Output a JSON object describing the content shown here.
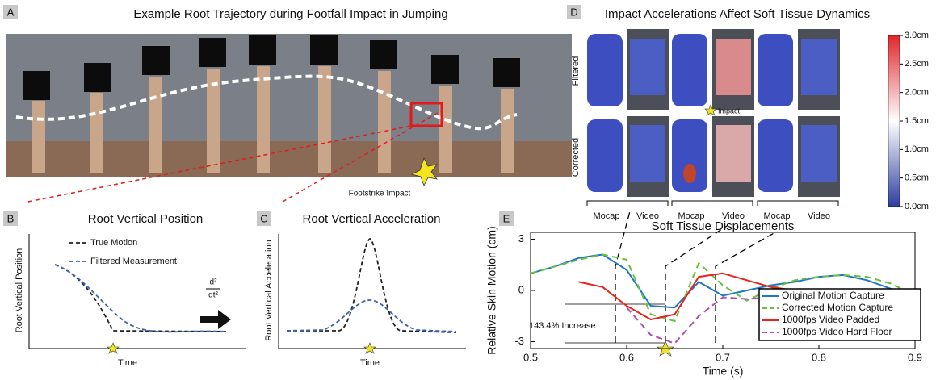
{
  "panels": {
    "a": {
      "letter": "A",
      "title": "Example Root Trajectory during Footfall Impact in Jumping",
      "annotation": "Footstrike Impact"
    },
    "b": {
      "letter": "B",
      "title": "Root Vertical Position",
      "ylabel": "Root Vertical Position",
      "xlabel": "Time",
      "legend": [
        "True Motion",
        "Filtered Measurement"
      ]
    },
    "c": {
      "letter": "C",
      "title": "Root Vertical Acceleration",
      "ylabel": "Root Vertical Acceleration",
      "xlabel": "Time",
      "operator_top": "d²",
      "operator_bottom": "dt²"
    },
    "d": {
      "letter": "D",
      "title": "Impact Accelerations Affect Soft Tissue Dynamics",
      "row_labels": [
        "Filtered",
        "Corrected"
      ],
      "column_labels": [
        "Mocap",
        "Video",
        "Mocap",
        "Video",
        "Mocap",
        "Video"
      ],
      "annotation": "Impact",
      "colorbar": {
        "lim": [
          0,
          3
        ],
        "ticks": [
          {
            "value": 3.0,
            "label": "3.0cm"
          },
          {
            "value": 2.5,
            "label": "2.5cm"
          },
          {
            "value": 2.0,
            "label": "2.0cm"
          },
          {
            "value": 1.5,
            "label": "1.5cm"
          },
          {
            "value": 1.0,
            "label": "1.0cm"
          },
          {
            "value": 0.5,
            "label": "0.5cm"
          },
          {
            "value": 0.0,
            "label": "0.0cm"
          }
        ]
      }
    },
    "e": {
      "letter": "E"
    }
  },
  "chart_data": {
    "type": "line",
    "title": "Soft Tissue Displacements",
    "xlabel": "Time (s)",
    "ylabel": "Relative Skin Motion (cm)",
    "annotation": "143.4% Increase",
    "xlim": [
      0.5,
      0.9
    ],
    "ylim": [
      -3.4,
      3.4
    ],
    "xticks": [
      0.5,
      0.6,
      0.7,
      0.8,
      0.9
    ],
    "yticks": [
      3,
      0,
      -3
    ],
    "legend": "lower right",
    "x": [
      0.5,
      0.525,
      0.55,
      0.575,
      0.6,
      0.625,
      0.65,
      0.675,
      0.7,
      0.725,
      0.75,
      0.775,
      0.8,
      0.825,
      0.85,
      0.875,
      0.9
    ],
    "series": [
      {
        "name": "Original Motion Capture",
        "color": "#1f77c4",
        "dash": false,
        "values": [
          1.0,
          1.4,
          1.9,
          2.1,
          1.2,
          -0.9,
          -1.0,
          0.5,
          -0.3,
          0.0,
          0.3,
          0.5,
          0.8,
          0.9,
          0.6,
          0.1,
          -0.3
        ]
      },
      {
        "name": "Corrected Motion Capture",
        "color": "#66c23a",
        "dash": true,
        "values": [
          1.0,
          1.4,
          1.8,
          2.1,
          1.8,
          -1.4,
          -1.8,
          1.6,
          0.3,
          -0.6,
          0.1,
          0.6,
          0.8,
          0.9,
          0.8,
          0.4,
          -0.3
        ]
      },
      {
        "name": "1000fps Video Padded",
        "color": "#e8231f",
        "dash": false,
        "values": [
          null,
          null,
          0.5,
          0.2,
          -0.9,
          -1.7,
          -1.4,
          0.8,
          1.0,
          0.6,
          0.2,
          0.0,
          -0.1,
          -0.1,
          null,
          null,
          null
        ]
      },
      {
        "name": "1000fps Video Hard Floor",
        "color": "#b04fb0",
        "dash": true,
        "values": [
          null,
          null,
          null,
          null,
          -1.0,
          -2.6,
          -3.1,
          -1.5,
          -0.4,
          -0.5,
          -0.4,
          -0.6,
          -0.5,
          null,
          null,
          null,
          null
        ]
      }
    ]
  }
}
